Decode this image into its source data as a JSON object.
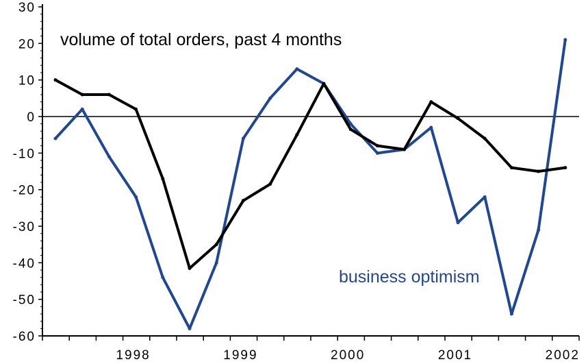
{
  "chart_data": {
    "type": "line",
    "title": "",
    "xlabel": "",
    "ylabel": "",
    "ylim": [
      -60,
      30
    ],
    "yticks": [
      "30",
      "20",
      "10",
      "0",
      "-10",
      "-20",
      "-30",
      "-40",
      "-50",
      "-60"
    ],
    "ytick_values": [
      30,
      20,
      10,
      0,
      -10,
      -20,
      -30,
      -40,
      -50,
      -60
    ],
    "x_year_labels": [
      {
        "label": "1998",
        "index": 3
      },
      {
        "label": "1999",
        "index": 7
      },
      {
        "label": "2000",
        "index": 11
      },
      {
        "label": "2001",
        "index": 15
      },
      {
        "label": "2002",
        "index": 19
      }
    ],
    "x": [
      0,
      1,
      2,
      3,
      4,
      5,
      6,
      7,
      8,
      9,
      10,
      11,
      12,
      13,
      14,
      15,
      16,
      17,
      18,
      19
    ],
    "series": [
      {
        "name": "volume of total orders, past 4 months",
        "color": "#000000",
        "values": [
          10,
          6,
          6,
          2,
          -17,
          -41.5,
          -35,
          -23,
          -18.5,
          -5,
          9,
          -3.5,
          -8,
          -9,
          4,
          -0.5,
          -6,
          -14,
          -15,
          -14
        ]
      },
      {
        "name": "business optimism",
        "color": "#1f4796",
        "values": [
          -6,
          2,
          -11,
          -22,
          -44,
          -58,
          -40,
          -6,
          5,
          13,
          9,
          -2,
          -10,
          -9,
          -3,
          -29,
          -22,
          -54,
          -31,
          21
        ]
      }
    ],
    "annotations": [
      "volume of total orders, past 4 months",
      "business optimism"
    ],
    "grid": false,
    "zero_line": true
  }
}
